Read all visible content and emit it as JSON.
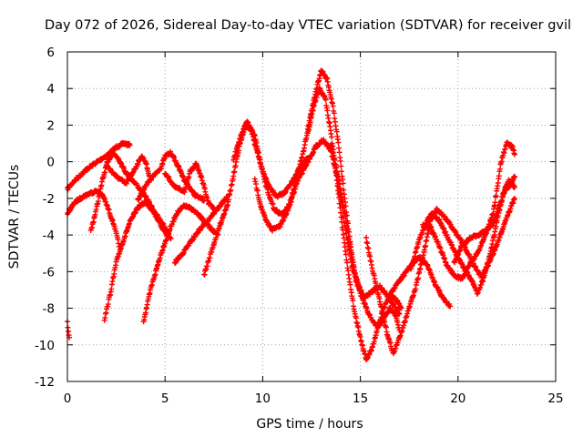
{
  "chart_data": {
    "type": "scatter",
    "title": "Day 072 of 2026, Sidereal Day-to-day VTEC variation (SDTVAR) for receiver gvil",
    "xlabel": "GPS time / hours",
    "ylabel": "SDTVAR / TECUs",
    "xlim": [
      0,
      25
    ],
    "ylim": [
      -12,
      6
    ],
    "xticks": [
      0,
      5,
      10,
      15,
      20,
      25
    ],
    "yticks": [
      -12,
      -10,
      -8,
      -6,
      -4,
      -2,
      0,
      2,
      4,
      6
    ],
    "grid": true,
    "marker": "plus",
    "color": "#ff0000",
    "series": [
      {
        "points": [
          [
            0.0,
            -1.5
          ],
          [
            0.3,
            -1.1
          ],
          [
            0.6,
            -0.8
          ],
          [
            1.0,
            -0.4
          ],
          [
            1.4,
            -0.1
          ],
          [
            1.8,
            0.2
          ],
          [
            2.1,
            0.4
          ],
          [
            2.5,
            0.8
          ],
          [
            2.9,
            1.0
          ],
          [
            3.2,
            0.9
          ]
        ]
      },
      {
        "points": [
          [
            0.0,
            -2.8
          ],
          [
            0.4,
            -2.2
          ],
          [
            0.8,
            -1.9
          ],
          [
            1.2,
            -1.7
          ],
          [
            1.5,
            -1.6
          ],
          [
            1.8,
            -1.8
          ],
          [
            2.1,
            -2.6
          ],
          [
            2.4,
            -3.5
          ],
          [
            2.7,
            -4.8
          ]
        ]
      },
      {
        "points": [
          [
            1.2,
            -3.8
          ],
          [
            1.5,
            -2.5
          ],
          [
            1.8,
            -1.0
          ],
          [
            2.0,
            -0.2
          ],
          [
            2.3,
            0.5
          ],
          [
            2.6,
            0.2
          ],
          [
            3.0,
            -0.6
          ],
          [
            3.5,
            -1.2
          ],
          [
            4.0,
            -1.9
          ],
          [
            4.5,
            -2.8
          ],
          [
            5.0,
            -3.6
          ],
          [
            5.3,
            -4.2
          ]
        ]
      },
      {
        "points": [
          [
            1.9,
            -8.6
          ],
          [
            2.2,
            -7.2
          ],
          [
            2.5,
            -5.5
          ],
          [
            2.8,
            -4.5
          ],
          [
            3.2,
            -3.3
          ],
          [
            3.6,
            -2.5
          ],
          [
            4.0,
            -2.2
          ],
          [
            4.4,
            -2.7
          ],
          [
            4.8,
            -3.5
          ],
          [
            5.1,
            -4.0
          ]
        ]
      },
      {
        "points": [
          [
            2.0,
            -0.2
          ],
          [
            2.5,
            -0.8
          ],
          [
            3.0,
            -1.2
          ],
          [
            3.5,
            -0.3
          ],
          [
            3.8,
            0.3
          ],
          [
            4.0,
            0.0
          ],
          [
            4.2,
            -0.8
          ]
        ]
      },
      {
        "points": [
          [
            3.6,
            -2.1
          ],
          [
            4.0,
            -1.3
          ],
          [
            4.4,
            -0.8
          ],
          [
            4.8,
            -0.3
          ],
          [
            5.0,
            0.3
          ],
          [
            5.3,
            0.5
          ],
          [
            5.6,
            -0.1
          ],
          [
            6.0,
            -1.0
          ],
          [
            6.5,
            -1.8
          ],
          [
            7.0,
            -2.1
          ]
        ]
      },
      {
        "points": [
          [
            3.9,
            -8.7
          ],
          [
            4.3,
            -6.8
          ],
          [
            4.8,
            -5.0
          ],
          [
            5.2,
            -3.8
          ],
          [
            5.6,
            -2.8
          ],
          [
            6.0,
            -2.4
          ],
          [
            6.4,
            -2.6
          ],
          [
            6.8,
            -3.0
          ],
          [
            7.3,
            -3.6
          ],
          [
            7.7,
            -4.0
          ]
        ]
      },
      {
        "points": [
          [
            5.0,
            -0.6
          ],
          [
            5.5,
            -1.4
          ],
          [
            6.0,
            -1.6
          ],
          [
            6.3,
            -0.5
          ],
          [
            6.6,
            -0.1
          ],
          [
            6.9,
            -1.0
          ],
          [
            7.2,
            -2.2
          ],
          [
            7.5,
            -2.6
          ]
        ]
      },
      {
        "points": [
          [
            5.5,
            -5.5
          ],
          [
            5.9,
            -5.0
          ],
          [
            6.3,
            -4.4
          ],
          [
            6.7,
            -3.8
          ],
          [
            7.1,
            -3.3
          ],
          [
            7.5,
            -2.8
          ],
          [
            7.9,
            -2.3
          ],
          [
            8.2,
            -1.9
          ]
        ]
      },
      {
        "points": [
          [
            7.0,
            -6.2
          ],
          [
            7.4,
            -4.8
          ],
          [
            7.8,
            -3.5
          ],
          [
            8.2,
            -2.3
          ],
          [
            8.5,
            -0.8
          ],
          [
            8.8,
            0.8
          ],
          [
            9.1,
            2.0
          ],
          [
            9.4,
            1.8
          ],
          [
            9.7,
            0.6
          ],
          [
            10.0,
            -0.5
          ],
          [
            10.3,
            -1.3
          ],
          [
            10.7,
            -1.9
          ],
          [
            11.1,
            -1.7
          ],
          [
            11.5,
            -1.1
          ],
          [
            11.9,
            -0.3
          ],
          [
            12.3,
            0.2
          ]
        ]
      },
      {
        "points": [
          [
            8.5,
            0.1
          ],
          [
            8.9,
            1.5
          ],
          [
            9.2,
            2.2
          ],
          [
            9.6,
            1.4
          ],
          [
            10.0,
            -0.6
          ],
          [
            10.3,
            -1.8
          ],
          [
            10.6,
            -2.6
          ],
          [
            11.0,
            -2.9
          ],
          [
            11.4,
            -2.3
          ],
          [
            11.8,
            -1.0
          ],
          [
            12.3,
            0.0
          ],
          [
            12.7,
            0.8
          ],
          [
            13.1,
            1.2
          ],
          [
            13.5,
            0.6
          ],
          [
            13.8,
            -0.8
          ],
          [
            14.2,
            -3.5
          ],
          [
            14.6,
            -5.8
          ],
          [
            15.0,
            -7.0
          ]
        ]
      },
      {
        "points": [
          [
            9.6,
            -1.0
          ],
          [
            9.9,
            -2.4
          ],
          [
            10.2,
            -3.3
          ],
          [
            10.5,
            -3.7
          ],
          [
            10.9,
            -3.5
          ],
          [
            11.3,
            -2.6
          ],
          [
            11.7,
            -1.0
          ],
          [
            12.1,
            0.6
          ],
          [
            12.5,
            2.8
          ],
          [
            12.8,
            4.2
          ],
          [
            13.0,
            5.0
          ],
          [
            13.3,
            4.5
          ],
          [
            13.6,
            3.0
          ],
          [
            13.9,
            0.8
          ],
          [
            14.2,
            -2.0
          ],
          [
            14.5,
            -4.6
          ],
          [
            14.8,
            -6.6
          ],
          [
            15.2,
            -7.4
          ],
          [
            15.6,
            -7.1
          ],
          [
            16.0,
            -6.8
          ],
          [
            16.3,
            -7.2
          ],
          [
            16.7,
            -7.8
          ],
          [
            17.0,
            -8.3
          ]
        ]
      },
      {
        "points": [
          [
            12.3,
            1.5
          ],
          [
            12.6,
            3.0
          ],
          [
            12.9,
            4.0
          ],
          [
            13.2,
            3.5
          ],
          [
            13.5,
            1.5
          ],
          [
            13.8,
            -1.0
          ],
          [
            14.1,
            -3.8
          ],
          [
            14.4,
            -6.2
          ],
          [
            14.7,
            -8.2
          ],
          [
            15.0,
            -9.6
          ],
          [
            15.3,
            -10.8
          ],
          [
            15.6,
            -10.2
          ],
          [
            15.9,
            -9.0
          ],
          [
            16.2,
            -8.0
          ],
          [
            16.5,
            -7.3
          ],
          [
            16.8,
            -7.5
          ],
          [
            17.1,
            -8.0
          ]
        ]
      },
      {
        "points": [
          [
            13.5,
            1.0
          ],
          [
            13.8,
            -0.5
          ],
          [
            14.1,
            -2.2
          ],
          [
            14.4,
            -4.0
          ],
          [
            14.7,
            -6.0
          ],
          [
            15.0,
            -7.2
          ],
          [
            15.3,
            -8.0
          ],
          [
            15.6,
            -8.7
          ],
          [
            15.9,
            -9.0
          ],
          [
            16.2,
            -8.6
          ],
          [
            16.5,
            -8.0
          ],
          [
            16.8,
            -8.4
          ],
          [
            17.0,
            -9.2
          ]
        ]
      },
      {
        "points": [
          [
            15.3,
            -4.2
          ],
          [
            15.6,
            -5.8
          ],
          [
            16.0,
            -7.6
          ],
          [
            16.4,
            -9.5
          ],
          [
            16.7,
            -10.5
          ],
          [
            17.0,
            -9.6
          ],
          [
            17.4,
            -8.3
          ],
          [
            17.8,
            -7.0
          ],
          [
            18.2,
            -5.2
          ],
          [
            18.6,
            -3.2
          ],
          [
            18.9,
            -2.6
          ],
          [
            19.3,
            -3.0
          ],
          [
            19.7,
            -3.6
          ],
          [
            20.1,
            -4.2
          ],
          [
            20.5,
            -5.0
          ],
          [
            20.9,
            -5.8
          ],
          [
            21.2,
            -6.3
          ],
          [
            21.6,
            -5.5
          ],
          [
            22.0,
            -4.5
          ],
          [
            22.5,
            -3.0
          ],
          [
            22.9,
            -2.0
          ]
        ]
      },
      {
        "points": [
          [
            17.6,
            -5.8
          ],
          [
            18.0,
            -4.3
          ],
          [
            18.4,
            -3.2
          ],
          [
            18.7,
            -2.8
          ],
          [
            19.1,
            -3.3
          ],
          [
            19.5,
            -4.2
          ],
          [
            19.9,
            -5.0
          ],
          [
            20.3,
            -5.8
          ],
          [
            20.7,
            -6.5
          ],
          [
            21.0,
            -7.2
          ],
          [
            21.3,
            -6.4
          ],
          [
            21.7,
            -4.8
          ],
          [
            22.0,
            -3.2
          ],
          [
            22.3,
            -1.8
          ],
          [
            22.6,
            -1.0
          ],
          [
            22.9,
            -1.4
          ]
        ]
      },
      {
        "points": [
          [
            16.5,
            -7.3
          ],
          [
            17.0,
            -6.5
          ],
          [
            17.5,
            -5.8
          ],
          [
            18.0,
            -5.2
          ],
          [
            18.4,
            -5.6
          ],
          [
            18.8,
            -6.6
          ],
          [
            19.2,
            -7.4
          ],
          [
            19.6,
            -7.9
          ]
        ]
      },
      {
        "points": [
          [
            18.2,
            -3.5
          ],
          [
            18.6,
            -3.6
          ],
          [
            19.0,
            -4.5
          ],
          [
            19.4,
            -5.6
          ],
          [
            19.8,
            -6.2
          ],
          [
            20.2,
            -6.4
          ],
          [
            20.6,
            -5.6
          ],
          [
            21.0,
            -5.0
          ],
          [
            21.4,
            -4.0
          ],
          [
            21.8,
            -2.8
          ],
          [
            22.0,
            -1.5
          ],
          [
            22.2,
            0.0
          ],
          [
            22.5,
            1.0
          ],
          [
            22.8,
            0.8
          ],
          [
            22.9,
            0.4
          ]
        ]
      },
      {
        "points": [
          [
            19.8,
            -5.5
          ],
          [
            20.2,
            -4.6
          ],
          [
            20.6,
            -4.2
          ],
          [
            21.0,
            -4.0
          ],
          [
            21.4,
            -3.8
          ],
          [
            21.8,
            -3.4
          ],
          [
            22.1,
            -2.4
          ],
          [
            22.4,
            -1.6
          ],
          [
            22.7,
            -1.2
          ],
          [
            22.9,
            -0.8
          ]
        ]
      },
      {
        "points": [
          [
            0.0,
            -8.8
          ],
          [
            0.05,
            -9.2
          ],
          [
            0.1,
            -9.6
          ]
        ]
      }
    ]
  }
}
